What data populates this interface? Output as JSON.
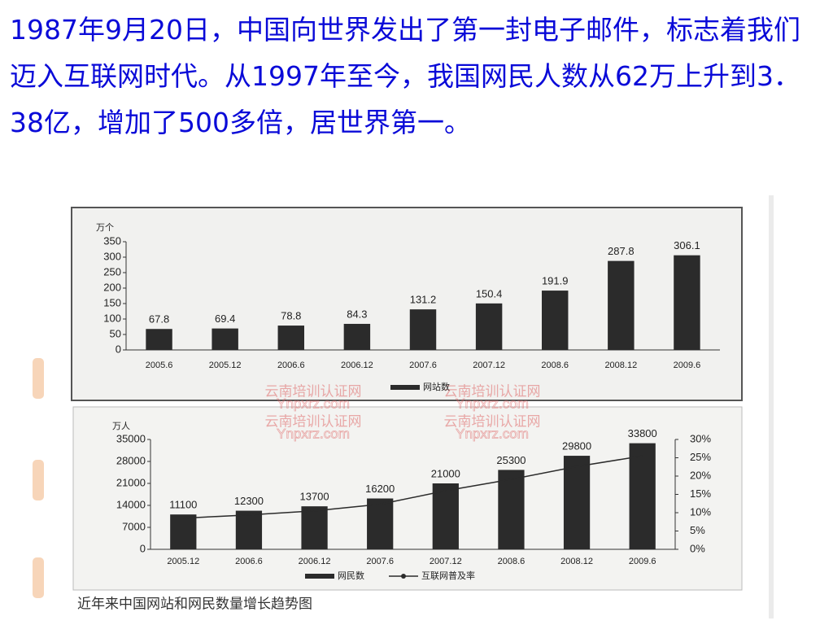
{
  "heading": "1987年9月20日，中国向世界发出了第一封电子邮件，标志着我们迈入互联网时代。从1997年至今，我国网民人数从62万上升到3．38亿，增加了500多倍，居世界第一。",
  "caption": "近年来中国网站和网民数量增长趋势图",
  "watermark": [
    "云南培训认证网",
    "Ynpxrz.com"
  ],
  "chart_data": [
    {
      "type": "bar",
      "y_label": "万个",
      "categories": [
        "2005.6",
        "2005.12",
        "2006.6",
        "2006.12",
        "2007.6",
        "2007.12",
        "2008.6",
        "2008.12",
        "2009.6"
      ],
      "series": [
        {
          "name": "网站数",
          "color": "#2b2b2b",
          "values": [
            67.8,
            69.4,
            78.8,
            84.3,
            131.2,
            150.4,
            191.9,
            287.8,
            306.1
          ]
        }
      ],
      "ylim": [
        0,
        350
      ],
      "yticks": [
        0,
        50,
        100,
        150,
        200,
        250,
        300,
        350
      ]
    },
    {
      "type": "combo",
      "y_label": "万人",
      "categories": [
        "2005.12",
        "2006.6",
        "2006.12",
        "2007.6",
        "2007.12",
        "2008.6",
        "2008.12",
        "2009.6"
      ],
      "series": [
        {
          "name": "网民数",
          "type": "bar",
          "color": "#2b2b2b",
          "values": [
            11100,
            12300,
            13700,
            16200,
            21000,
            25300,
            29800,
            33800
          ]
        },
        {
          "name": "互联网普及率",
          "type": "line",
          "axis": "y2",
          "color": "#2b2b2b",
          "values": [
            8.5,
            9.4,
            10.5,
            12.3,
            16.0,
            19.1,
            22.6,
            25.5
          ]
        }
      ],
      "ylim": [
        0,
        35000
      ],
      "yticks": [
        0,
        7000,
        14000,
        21000,
        28000,
        35000
      ],
      "y2lim": [
        0,
        30
      ],
      "y2ticks": [
        {
          "value": 0,
          "label": "0%"
        },
        {
          "value": 5,
          "label": "5%"
        },
        {
          "value": 10,
          "label": "10%"
        },
        {
          "value": 15,
          "label": "15%"
        },
        {
          "value": 20,
          "label": "20%"
        },
        {
          "value": 25,
          "label": "25%"
        },
        {
          "value": 30,
          "label": "30%"
        }
      ]
    }
  ]
}
